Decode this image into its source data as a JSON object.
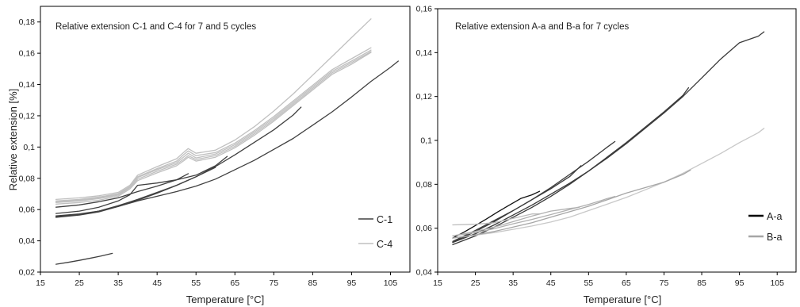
{
  "figure": {
    "panels": [
      "left",
      "right"
    ]
  },
  "chart_data": [
    {
      "type": "line",
      "title": "Relative extension C-1 and C-4 for 7 and 5 cycles",
      "xlabel": "Temperature [°C]",
      "ylabel": "Relative extension [%]",
      "xlim": [
        15,
        110
      ],
      "ylim": [
        0.02,
        0.19
      ],
      "x_ticks": [
        "15",
        "25",
        "35",
        "45",
        "55",
        "65",
        "75",
        "85",
        "95",
        "105"
      ],
      "y_ticks": [
        "0,02",
        "0,04",
        "0,06",
        "0,08",
        "0,1",
        "0,12",
        "0,14",
        "0,16",
        "0,18"
      ],
      "grid": false,
      "legend_position": "bottom-right",
      "legend": [
        {
          "name": "C-1",
          "color": "#404040"
        },
        {
          "name": "C-4",
          "color": "#c0c0c0"
        }
      ],
      "series": [
        {
          "name": "C-1",
          "color": "#404040",
          "x": [
            19,
            22,
            25,
            28,
            31,
            33.5
          ],
          "y": [
            0.025,
            0.0262,
            0.0275,
            0.029,
            0.0305,
            0.032
          ]
        },
        {
          "name": "C-1",
          "color": "#404040",
          "x": [
            19,
            25,
            30,
            35,
            40,
            45,
            50,
            55,
            60,
            65,
            70,
            75,
            80,
            85,
            90,
            95,
            100,
            105,
            107
          ],
          "y": [
            0.056,
            0.0572,
            0.059,
            0.062,
            0.0655,
            0.0685,
            0.0715,
            0.075,
            0.0795,
            0.0855,
            0.0915,
            0.0985,
            0.1055,
            0.114,
            0.1225,
            0.132,
            0.142,
            0.151,
            0.155
          ]
        },
        {
          "name": "C-1",
          "color": "#404040",
          "x": [
            19,
            25,
            30,
            35,
            40,
            45,
            50,
            55,
            60,
            65,
            70,
            75,
            80,
            82
          ],
          "y": [
            0.0555,
            0.0568,
            0.059,
            0.0625,
            0.0665,
            0.071,
            0.0755,
            0.081,
            0.0875,
            0.095,
            0.103,
            0.111,
            0.1205,
            0.1255
          ]
        },
        {
          "name": "C-1",
          "color": "#404040",
          "x": [
            19,
            25,
            30,
            35,
            38,
            40,
            45,
            50,
            55,
            60,
            63
          ],
          "y": [
            0.0575,
            0.059,
            0.0615,
            0.0655,
            0.0695,
            0.0755,
            0.077,
            0.079,
            0.082,
            0.088,
            0.094
          ]
        },
        {
          "name": "C-1",
          "color": "#404040",
          "x": [
            19,
            25,
            30,
            35,
            40,
            45,
            50,
            53
          ],
          "y": [
            0.0615,
            0.063,
            0.065,
            0.0675,
            0.0715,
            0.075,
            0.079,
            0.083
          ]
        },
        {
          "name": "C-1",
          "color": "#404040",
          "x": [
            19,
            25,
            30,
            35,
            40,
            45,
            50,
            55,
            60
          ],
          "y": [
            0.055,
            0.0565,
            0.0585,
            0.062,
            0.066,
            0.0705,
            0.0755,
            0.081,
            0.087
          ]
        },
        {
          "name": "C-4",
          "color": "#c0c0c0",
          "x": [
            19,
            25,
            30,
            35,
            38,
            40,
            45,
            50,
            52,
            53,
            55,
            60,
            65,
            70,
            75,
            80,
            85,
            90,
            95,
            100
          ],
          "y": [
            0.0665,
            0.0675,
            0.0688,
            0.071,
            0.0755,
            0.082,
            0.0875,
            0.0925,
            0.097,
            0.099,
            0.096,
            0.098,
            0.1045,
            0.113,
            0.123,
            0.134,
            0.146,
            0.158,
            0.17,
            0.182
          ]
        },
        {
          "name": "C-4",
          "color": "#c0c0c0",
          "x": [
            19,
            25,
            30,
            35,
            38,
            40,
            45,
            50,
            52,
            53,
            55,
            60,
            65,
            70,
            75,
            80,
            85,
            90,
            95,
            100
          ],
          "y": [
            0.065,
            0.066,
            0.0675,
            0.0698,
            0.0745,
            0.081,
            0.0862,
            0.091,
            0.0955,
            0.0975,
            0.0945,
            0.0965,
            0.1025,
            0.1105,
            0.1195,
            0.1295,
            0.1395,
            0.1495,
            0.1565,
            0.1635
          ]
        },
        {
          "name": "C-4",
          "color": "#c0c0c0",
          "x": [
            19,
            25,
            30,
            35,
            38,
            40,
            45,
            50,
            52,
            53,
            55,
            60,
            65,
            70,
            75,
            80,
            85,
            90,
            95,
            100
          ],
          "y": [
            0.0655,
            0.0665,
            0.068,
            0.0702,
            0.0748,
            0.0805,
            0.0855,
            0.09,
            0.094,
            0.096,
            0.093,
            0.0955,
            0.1015,
            0.1095,
            0.1185,
            0.1285,
            0.1385,
            0.1485,
            0.155,
            0.162
          ]
        },
        {
          "name": "C-4",
          "color": "#c0c0c0",
          "x": [
            19,
            25,
            30,
            35,
            38,
            40,
            45,
            50,
            52,
            53,
            55,
            60,
            65,
            70,
            75,
            80,
            85,
            90,
            95,
            100
          ],
          "y": [
            0.0645,
            0.0655,
            0.067,
            0.0692,
            0.074,
            0.0795,
            0.0845,
            0.089,
            0.0925,
            0.0945,
            0.092,
            0.0945,
            0.1005,
            0.1085,
            0.1175,
            0.1275,
            0.1375,
            0.1475,
            0.154,
            0.161
          ]
        },
        {
          "name": "C-4",
          "color": "#c0c0c0",
          "x": [
            19,
            25,
            30,
            35,
            38,
            40,
            45,
            50,
            52,
            53,
            55,
            60,
            65,
            70,
            75,
            80,
            85,
            90,
            95,
            100
          ],
          "y": [
            0.0635,
            0.0645,
            0.066,
            0.0685,
            0.0732,
            0.0785,
            0.0835,
            0.088,
            0.0915,
            0.0935,
            0.091,
            0.0935,
            0.0995,
            0.1075,
            0.1165,
            0.1265,
            0.1365,
            0.1465,
            0.153,
            0.1605
          ]
        }
      ]
    },
    {
      "type": "line",
      "title": "Relative extension A-a and B-a for 7 cycles",
      "xlabel": "Temperature [°C]",
      "ylabel": "",
      "xlim": [
        15,
        110
      ],
      "ylim": [
        0.04,
        0.16
      ],
      "x_ticks": [
        "15",
        "25",
        "35",
        "45",
        "55",
        "65",
        "75",
        "85",
        "95",
        "105"
      ],
      "y_ticks": [
        "0,04",
        "0,06",
        "0,08",
        "0,1",
        "0,12",
        "0,14",
        "0,16"
      ],
      "grid": false,
      "legend_position": "bottom-right",
      "legend": [
        {
          "name": "A-a",
          "color": "#000000"
        },
        {
          "name": "B-a",
          "color": "#a6a6a6"
        }
      ],
      "series": [
        {
          "name": "A-a",
          "color": "#3a3a3a",
          "x": [
            19,
            25,
            30,
            35,
            40,
            45,
            50,
            55,
            60,
            65,
            70,
            75,
            80,
            85,
            90,
            95,
            100,
            101.5
          ],
          "y": [
            0.0535,
            0.0575,
            0.0615,
            0.066,
            0.0705,
            0.0755,
            0.0805,
            0.086,
            0.092,
            0.0985,
            0.1055,
            0.1125,
            0.12,
            0.1285,
            0.137,
            0.1445,
            0.1475,
            0.1495
          ]
        },
        {
          "name": "A-a",
          "color": "#3a3a3a",
          "x": [
            19,
            25,
            30,
            35,
            40,
            45,
            50,
            55,
            60,
            65,
            70,
            75,
            80,
            81.5
          ],
          "y": [
            0.0525,
            0.0565,
            0.0605,
            0.065,
            0.0695,
            0.0745,
            0.08,
            0.086,
            0.0925,
            0.099,
            0.106,
            0.113,
            0.1205,
            0.124
          ]
        },
        {
          "name": "A-a",
          "color": "#3a3a3a",
          "x": [
            19,
            25,
            30,
            35,
            40,
            45,
            50,
            55,
            60,
            62
          ],
          "y": [
            0.0535,
            0.0585,
            0.063,
            0.068,
            0.073,
            0.0785,
            0.0845,
            0.0905,
            0.097,
            0.0995
          ]
        },
        {
          "name": "A-a",
          "color": "#111111",
          "x": [
            19,
            22,
            25,
            28,
            31,
            34,
            37,
            40,
            42
          ],
          "y": [
            0.0555,
            0.0582,
            0.0612,
            0.0643,
            0.0675,
            0.0705,
            0.0735,
            0.0752,
            0.0768
          ]
        },
        {
          "name": "A-a",
          "color": "#3a3a3a",
          "x": [
            19,
            25,
            30,
            35,
            40,
            45,
            50,
            53
          ],
          "y": [
            0.054,
            0.059,
            0.0635,
            0.068,
            0.073,
            0.078,
            0.0835,
            0.0885
          ]
        },
        {
          "name": "B-a",
          "color": "#c8c8c8",
          "x": [
            19,
            25,
            30,
            35,
            40,
            45,
            50,
            55,
            60,
            65,
            70,
            75,
            80,
            85,
            90,
            95,
            100,
            101.5
          ],
          "y": [
            0.0555,
            0.0568,
            0.058,
            0.0595,
            0.061,
            0.0628,
            0.065,
            0.068,
            0.071,
            0.074,
            0.0775,
            0.081,
            0.085,
            0.0895,
            0.094,
            0.099,
            0.1035,
            0.1055
          ]
        },
        {
          "name": "B-a",
          "color": "#a6a6a6",
          "x": [
            19,
            25,
            30,
            35,
            40,
            45,
            50,
            55,
            60,
            65,
            70,
            75,
            80,
            82
          ],
          "y": [
            0.0555,
            0.057,
            0.0585,
            0.0605,
            0.0625,
            0.065,
            0.0675,
            0.07,
            0.073,
            0.076,
            0.0785,
            0.081,
            0.0845,
            0.0865
          ]
        },
        {
          "name": "B-a",
          "color": "#b0b0b0",
          "x": [
            19,
            25,
            30,
            35,
            40,
            45,
            50,
            55,
            60,
            62
          ],
          "y": [
            0.0565,
            0.058,
            0.0598,
            0.062,
            0.064,
            0.0662,
            0.0685,
            0.0708,
            0.0735,
            0.0745
          ]
        },
        {
          "name": "B-a",
          "color": "#bcbcbc",
          "x": [
            19,
            25,
            30,
            35,
            40,
            42
          ],
          "y": [
            0.0615,
            0.0618,
            0.0625,
            0.0645,
            0.0665,
            0.0665
          ]
        },
        {
          "name": "B-a",
          "color": "#b0b0b0",
          "x": [
            19,
            25,
            30,
            35,
            40,
            45,
            50,
            52.5
          ],
          "y": [
            0.0565,
            0.0585,
            0.0605,
            0.063,
            0.0655,
            0.0678,
            0.069,
            0.0695
          ]
        }
      ]
    }
  ]
}
